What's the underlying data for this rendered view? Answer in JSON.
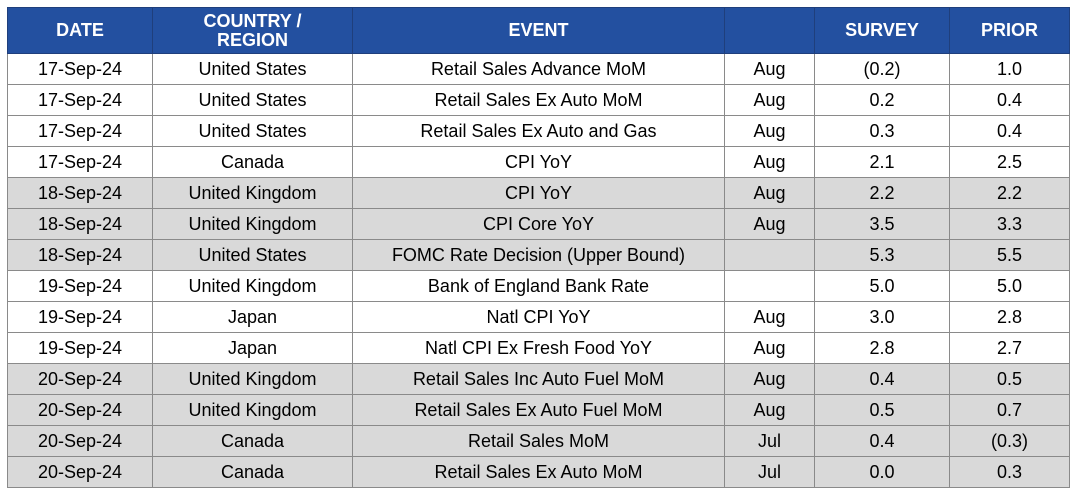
{
  "header": {
    "date": "DATE",
    "region_line1": "COUNTRY /",
    "region_line2": "REGION",
    "event": "EVENT",
    "period": "",
    "survey": "SURVEY",
    "prior": "PRIOR"
  },
  "colors": {
    "header_bg": "#2350a0",
    "header_text": "#ffffff",
    "shaded_row": "#d9d9d9",
    "plain_row": "#ffffff"
  },
  "rows": [
    {
      "date": "17-Sep-24",
      "region": "United States",
      "event": "Retail Sales Advance MoM",
      "period": "Aug",
      "survey": "(0.2)",
      "prior": "1.0",
      "shaded": false
    },
    {
      "date": "17-Sep-24",
      "region": "United States",
      "event": "Retail Sales Ex Auto MoM",
      "period": "Aug",
      "survey": "0.2",
      "prior": "0.4",
      "shaded": false
    },
    {
      "date": "17-Sep-24",
      "region": "United States",
      "event": "Retail Sales Ex Auto and Gas",
      "period": "Aug",
      "survey": "0.3",
      "prior": "0.4",
      "shaded": false
    },
    {
      "date": "17-Sep-24",
      "region": "Canada",
      "event": "CPI YoY",
      "period": "Aug",
      "survey": "2.1",
      "prior": "2.5",
      "shaded": false
    },
    {
      "date": "18-Sep-24",
      "region": "United Kingdom",
      "event": "CPI YoY",
      "period": "Aug",
      "survey": "2.2",
      "prior": "2.2",
      "shaded": true
    },
    {
      "date": "18-Sep-24",
      "region": "United Kingdom",
      "event": "CPI Core YoY",
      "period": "Aug",
      "survey": "3.5",
      "prior": "3.3",
      "shaded": true
    },
    {
      "date": "18-Sep-24",
      "region": "United States",
      "event": "FOMC Rate Decision (Upper Bound)",
      "period": "",
      "survey": "5.3",
      "prior": "5.5",
      "shaded": true
    },
    {
      "date": "19-Sep-24",
      "region": "United Kingdom",
      "event": "Bank of England Bank Rate",
      "period": "",
      "survey": "5.0",
      "prior": "5.0",
      "shaded": false
    },
    {
      "date": "19-Sep-24",
      "region": "Japan",
      "event": "Natl CPI YoY",
      "period": "Aug",
      "survey": "3.0",
      "prior": "2.8",
      "shaded": false
    },
    {
      "date": "19-Sep-24",
      "region": "Japan",
      "event": "Natl CPI Ex Fresh Food YoY",
      "period": "Aug",
      "survey": "2.8",
      "prior": "2.7",
      "shaded": false
    },
    {
      "date": "20-Sep-24",
      "region": "United Kingdom",
      "event": "Retail Sales Inc Auto Fuel MoM",
      "period": "Aug",
      "survey": "0.4",
      "prior": "0.5",
      "shaded": true
    },
    {
      "date": "20-Sep-24",
      "region": "United Kingdom",
      "event": "Retail Sales Ex Auto Fuel MoM",
      "period": "Aug",
      "survey": "0.5",
      "prior": "0.7",
      "shaded": true
    },
    {
      "date": "20-Sep-24",
      "region": "Canada",
      "event": "Retail Sales MoM",
      "period": "Jul",
      "survey": "0.4",
      "prior": "(0.3)",
      "shaded": true
    },
    {
      "date": "20-Sep-24",
      "region": "Canada",
      "event": "Retail Sales Ex Auto MoM",
      "period": "Jul",
      "survey": "0.0",
      "prior": "0.3",
      "shaded": true
    }
  ]
}
